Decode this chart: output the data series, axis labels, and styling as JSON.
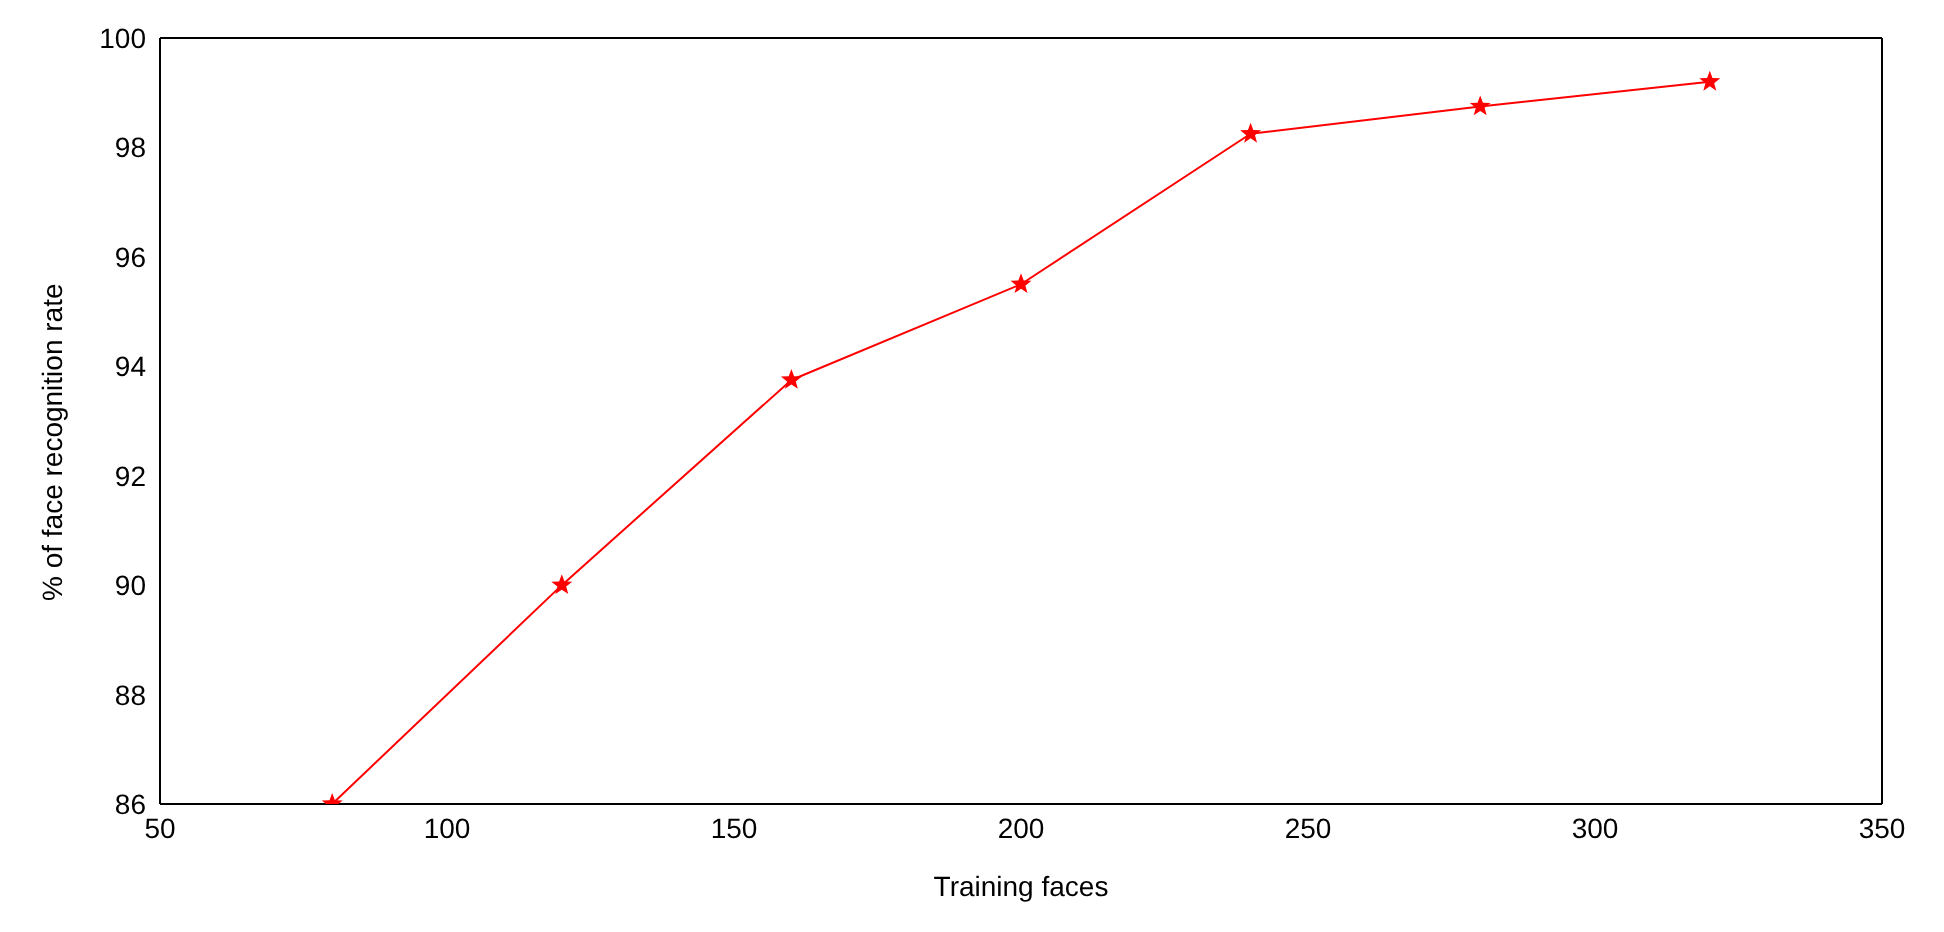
{
  "chart_data": {
    "type": "line",
    "xlabel": "Training faces",
    "ylabel": "% of face recognition rate",
    "x": [
      80,
      120,
      160,
      200,
      240,
      280,
      320
    ],
    "series": [
      {
        "color": "#ff0000",
        "values": [
          86,
          90,
          93.75,
          95.5,
          98.25,
          98.75,
          99.2
        ]
      }
    ],
    "xlim": [
      50,
      350
    ],
    "xticks": [
      50,
      100,
      150,
      200,
      250,
      300,
      350
    ],
    "ylim": [
      86,
      100
    ],
    "yticks": [
      86,
      88,
      90,
      92,
      94,
      96,
      98,
      100
    ],
    "grid": false,
    "legend": false,
    "marker": "star",
    "line_style": "solid"
  }
}
